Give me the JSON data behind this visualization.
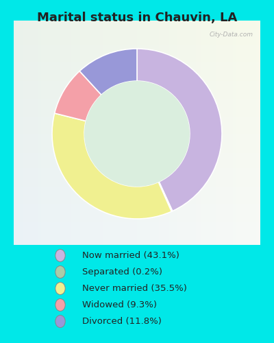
{
  "title": "Marital status in Chauvin, LA",
  "slices": [
    43.1,
    0.2,
    35.5,
    9.3,
    11.8
  ],
  "labels": [
    "Now married (43.1%)",
    "Separated (0.2%)",
    "Never married (35.5%)",
    "Widowed (9.3%)",
    "Divorced (11.8%)"
  ],
  "colors": [
    "#c8b4e0",
    "#aacca8",
    "#f0f090",
    "#f4a0a8",
    "#9898d8"
  ],
  "legend_colors": [
    "#c8b4e0",
    "#aacca8",
    "#f0f090",
    "#f4a0a8",
    "#9898d8"
  ],
  "background_color": "#00e8e8",
  "chart_bg": "#e8f4ec",
  "title_fontsize": 13,
  "title_color": "#222222",
  "watermark": "City-Data.com",
  "donut_width": 0.38,
  "startangle": 90
}
